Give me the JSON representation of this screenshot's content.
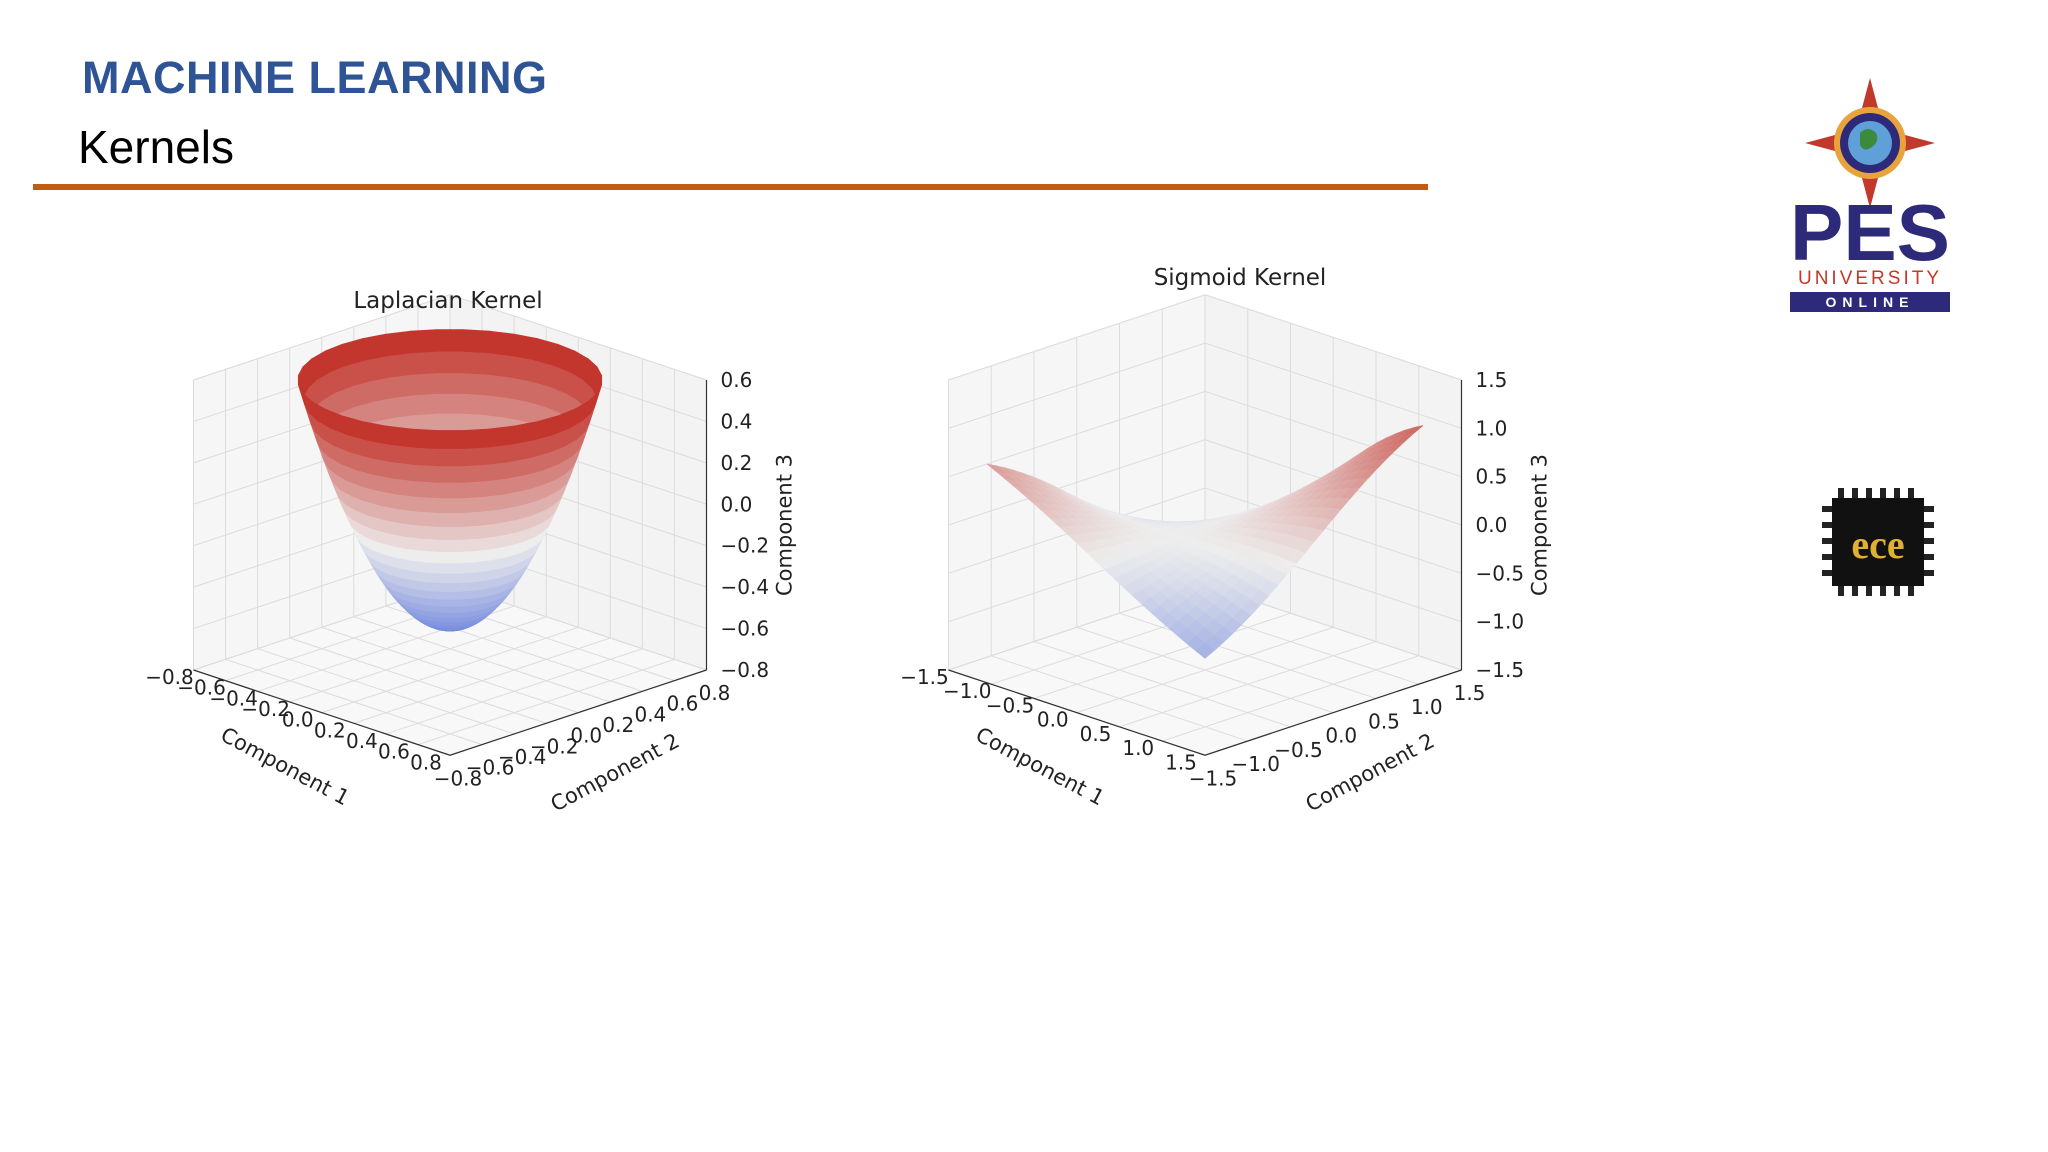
{
  "header": {
    "title": "MACHINE LEARNING",
    "subtitle": "Kernels"
  },
  "logos": {
    "pes_text": "PES",
    "pes_university": "UNIVERSITY",
    "pes_online": "ONLINE",
    "brand_color": "#2e2a7a",
    "accent_color": "#c0392b",
    "ece_text": "ece"
  },
  "colors": {
    "title": "#2f5496",
    "rule": "#c55a11",
    "colormap_low": "#3b5bd6",
    "colormap_mid": "#ededed",
    "colormap_high": "#c0281f"
  },
  "chart_data": [
    {
      "type": "surface3d",
      "title": "Laplacian Kernel",
      "xlabel": "Component 1",
      "ylabel": "Component 2",
      "zlabel": "Component 3",
      "colormap": "coolwarm",
      "x_ticks": [
        "−0.8",
        "−0.6",
        "−0.4",
        "−0.2",
        "0.0",
        "0.2",
        "0.4",
        "0.6",
        "0.8"
      ],
      "y_ticks": [
        "−0.8",
        "−0.6",
        "−0.4",
        "−0.2",
        "0.0",
        "0.2",
        "0.4",
        "0.6",
        "0.8"
      ],
      "z_ticks": [
        "0.6",
        "0.4",
        "0.2",
        "0.0",
        "−0.2",
        "−0.4",
        "−0.6",
        "−0.8"
      ],
      "xlim": [
        -0.8,
        0.8
      ],
      "ylim": [
        -0.8,
        0.8
      ],
      "zlim": [
        -0.8,
        0.6
      ],
      "surface": "bowl (paraboloid), minimum about -0.6 at center, rim about 0.6"
    },
    {
      "type": "surface3d",
      "title": "Sigmoid Kernel",
      "xlabel": "Component 1",
      "ylabel": "Component 2",
      "zlabel": "Component 3",
      "colormap": "coolwarm",
      "x_ticks": [
        "−1.5",
        "−1.0",
        "−0.5",
        "0.0",
        "0.5",
        "1.0",
        "1.5"
      ],
      "y_ticks": [
        "−1.5",
        "−1.0",
        "−0.5",
        "0.0",
        "0.5",
        "1.0",
        "1.5"
      ],
      "z_ticks": [
        "1.5",
        "1.0",
        "0.5",
        "0.0",
        "−0.5",
        "−1.0",
        "−1.5"
      ],
      "xlim": [
        -1.5,
        1.5
      ],
      "ylim": [
        -1.5,
        1.5
      ],
      "zlim": [
        -1.5,
        1.5
      ],
      "surface": "saddle-like surface ranging from about -1.2 to 1.3"
    }
  ]
}
